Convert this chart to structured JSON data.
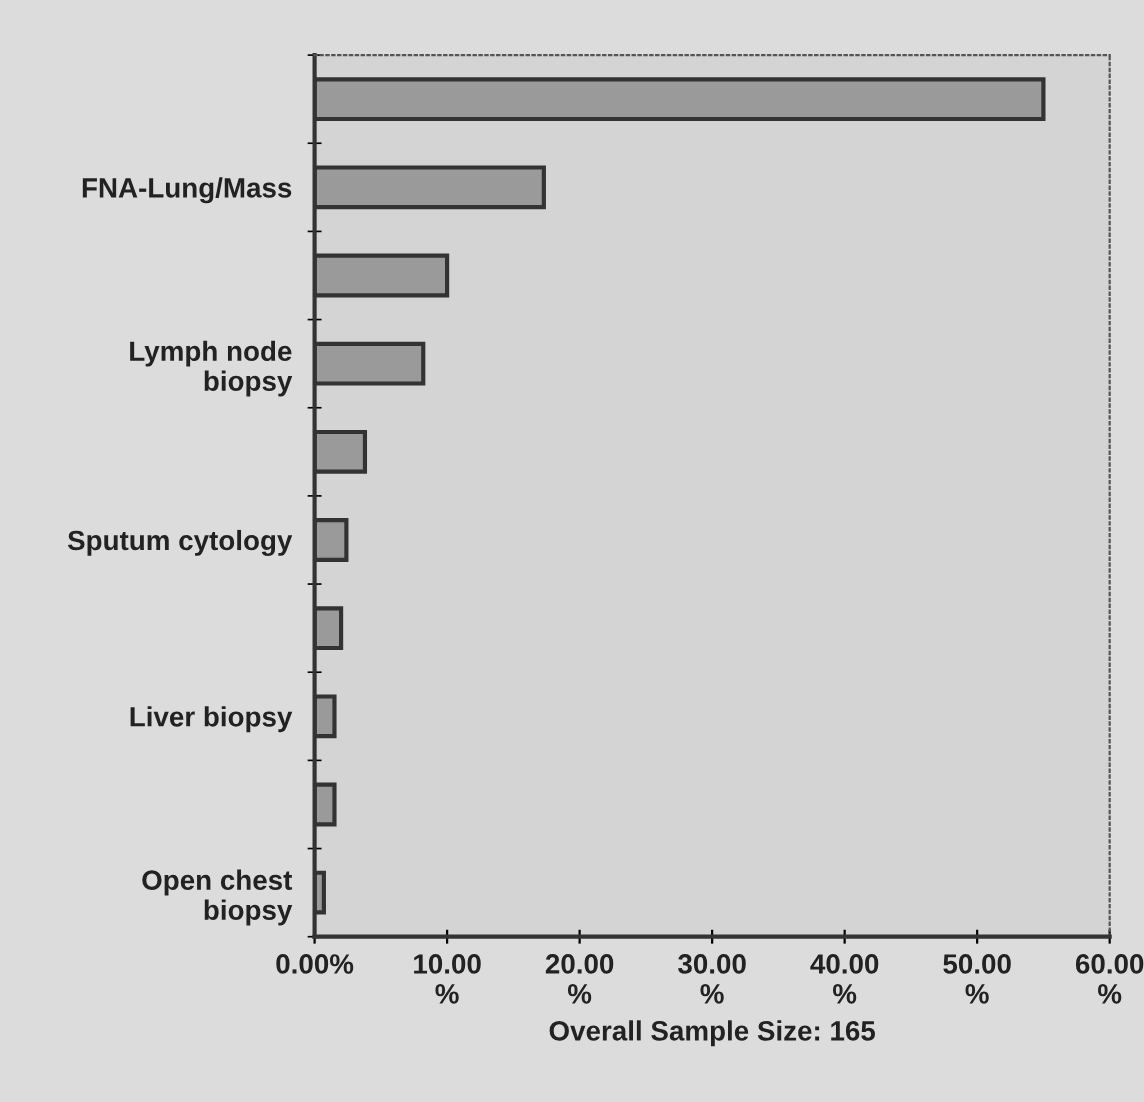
{
  "chart_data": {
    "type": "bar",
    "orientation": "horizontal",
    "xlabel": "Overall Sample Size: 165",
    "categories": [
      null,
      "FNA-Lung/Mass",
      null,
      "Lymph node\nbiopsy",
      null,
      "Sputum cytology",
      null,
      "Liver biopsy",
      null,
      "Open chest\nbiopsy"
    ],
    "values": [
      55.0,
      17.3,
      10.0,
      8.2,
      3.8,
      2.4,
      2.0,
      1.5,
      1.5,
      0.7
    ],
    "color": "#9a9a9a",
    "xlim": [
      0,
      60
    ],
    "xticks": [
      {
        "value": 0,
        "label": "0.00%"
      },
      {
        "value": 10,
        "label": "10.00\n%"
      },
      {
        "value": 20,
        "label": "20.00\n%"
      },
      {
        "value": 30,
        "label": "30.00\n%"
      },
      {
        "value": 40,
        "label": "40.00\n%"
      },
      {
        "value": 50,
        "label": "50.00\n%"
      },
      {
        "value": 60,
        "label": "60.00\n%"
      }
    ],
    "grid": false,
    "legend": false
  }
}
